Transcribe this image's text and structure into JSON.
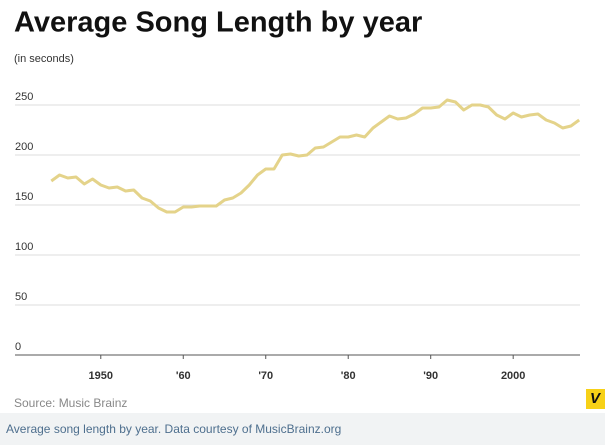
{
  "chart_data": {
    "type": "line",
    "title": "Average Song Length by year",
    "subtitle": "(in seconds)",
    "source": "Source: Music Brainz",
    "x": [
      1944,
      1945,
      1946,
      1947,
      1948,
      1949,
      1950,
      1951,
      1952,
      1953,
      1954,
      1955,
      1956,
      1957,
      1958,
      1959,
      1960,
      1961,
      1962,
      1963,
      1964,
      1965,
      1966,
      1967,
      1968,
      1969,
      1970,
      1971,
      1972,
      1973,
      1974,
      1975,
      1976,
      1977,
      1978,
      1979,
      1980,
      1981,
      1982,
      1983,
      1984,
      1985,
      1986,
      1987,
      1988,
      1989,
      1990,
      1991,
      1992,
      1993,
      1994,
      1995,
      1996,
      1997,
      1998,
      1999,
      2000,
      2001,
      2002,
      2003,
      2004,
      2005,
      2006,
      2007,
      2008
    ],
    "values": [
      174,
      180,
      177,
      178,
      171,
      176,
      170,
      167,
      168,
      164,
      165,
      157,
      154,
      147,
      143,
      143,
      148,
      148,
      149,
      149,
      149,
      155,
      157,
      162,
      170,
      180,
      186,
      186,
      200,
      201,
      199,
      200,
      207,
      208,
      213,
      218,
      218,
      220,
      218,
      227,
      233,
      239,
      236,
      237,
      241,
      247,
      247,
      248,
      255,
      253,
      245,
      250,
      250,
      248,
      240,
      236,
      242,
      238,
      240,
      241,
      235,
      232,
      227,
      229,
      235
    ],
    "color": "#e4d38a",
    "xlim": [
      1939.6,
      2008.1
    ],
    "xticks": [
      1950,
      {
        "value": 1960,
        "label": "'60"
      },
      {
        "value": 1970,
        "label": "'70"
      },
      {
        "value": 1980,
        "label": "'80"
      },
      {
        "value": 1990,
        "label": "'90"
      },
      2000
    ],
    "ylim": [
      0,
      250
    ],
    "yticks": [
      0,
      50,
      100,
      150,
      200,
      250
    ],
    "grid": true
  },
  "logo": "V",
  "caption": "Average song length by year. Data courtesy of MusicBrainz.org"
}
